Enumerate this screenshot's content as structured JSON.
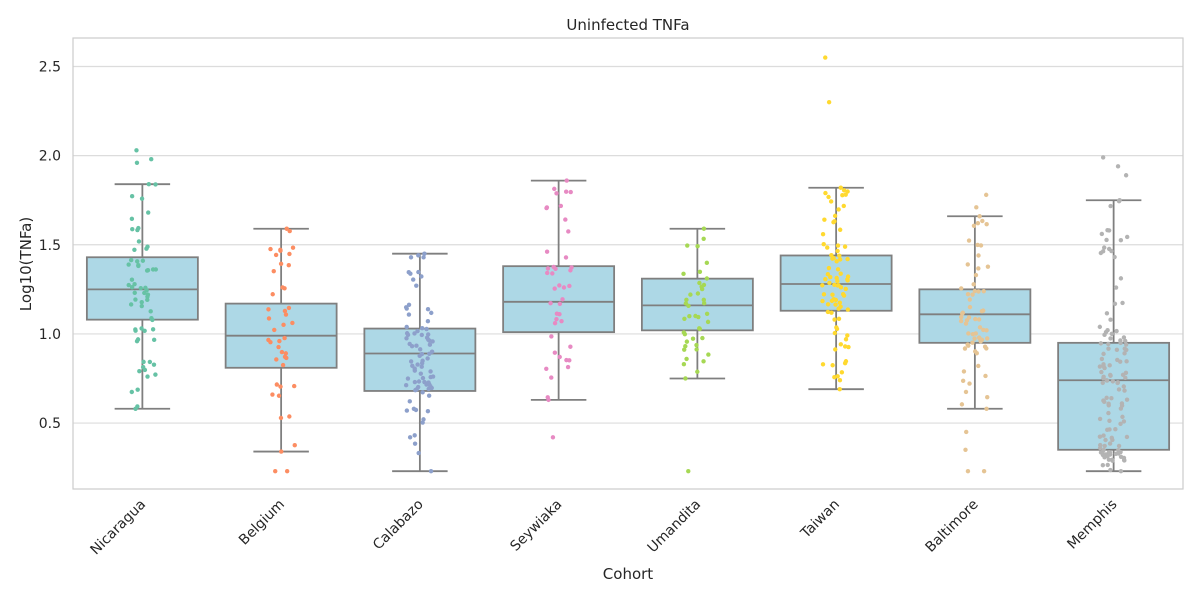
{
  "chart_data": {
    "type": "box",
    "title": "Uninfected TNFa",
    "xlabel": "Cohort",
    "ylabel": "Log10(TNFa)",
    "ylim": [
      0.13,
      2.66
    ],
    "yticks": [
      "0.5",
      "1.0",
      "1.5",
      "2.0",
      "2.5"
    ],
    "grid": true,
    "box_color": "#add8e6",
    "line_color": "#7f7f7f",
    "categories": [
      "Nicaragua",
      "Belgium",
      "Calabazo",
      "Seywiaka",
      "Umandita",
      "Taiwan",
      "Baltimore",
      "Memphis"
    ],
    "point_colors": [
      "#66c2a5",
      "#fc8d62",
      "#8da0cb",
      "#e78ac3",
      "#a6d854",
      "#ffd92f",
      "#e5c494",
      "#b3b3b3"
    ],
    "point_counts": [
      60,
      40,
      80,
      40,
      40,
      80,
      60,
      120
    ],
    "boxes": [
      {
        "whisker_low": 0.58,
        "q1": 1.08,
        "median": 1.25,
        "q3": 1.43,
        "whisker_high": 1.84,
        "outliers": [
          1.96,
          1.98,
          2.03
        ]
      },
      {
        "whisker_low": 0.34,
        "q1": 0.81,
        "median": 0.99,
        "q3": 1.17,
        "whisker_high": 1.59,
        "outliers": [
          0.23,
          0.23
        ]
      },
      {
        "whisker_low": 0.23,
        "q1": 0.68,
        "median": 0.89,
        "q3": 1.03,
        "whisker_high": 1.45,
        "outliers": []
      },
      {
        "whisker_low": 0.63,
        "q1": 1.01,
        "median": 1.18,
        "q3": 1.38,
        "whisker_high": 1.86,
        "outliers": [
          0.42
        ]
      },
      {
        "whisker_low": 0.75,
        "q1": 1.02,
        "median": 1.16,
        "q3": 1.31,
        "whisker_high": 1.59,
        "outliers": [
          0.23
        ]
      },
      {
        "whisker_low": 0.69,
        "q1": 1.13,
        "median": 1.28,
        "q3": 1.44,
        "whisker_high": 1.82,
        "outliers": [
          2.3,
          2.55
        ]
      },
      {
        "whisker_low": 0.58,
        "q1": 0.95,
        "median": 1.11,
        "q3": 1.25,
        "whisker_high": 1.66,
        "outliers": [
          0.23,
          0.23,
          0.35,
          0.45,
          1.71,
          1.78
        ]
      },
      {
        "whisker_low": 0.23,
        "q1": 0.35,
        "median": 0.74,
        "q3": 0.95,
        "whisker_high": 1.75,
        "outliers": [
          1.89,
          1.94,
          1.99
        ]
      }
    ]
  }
}
